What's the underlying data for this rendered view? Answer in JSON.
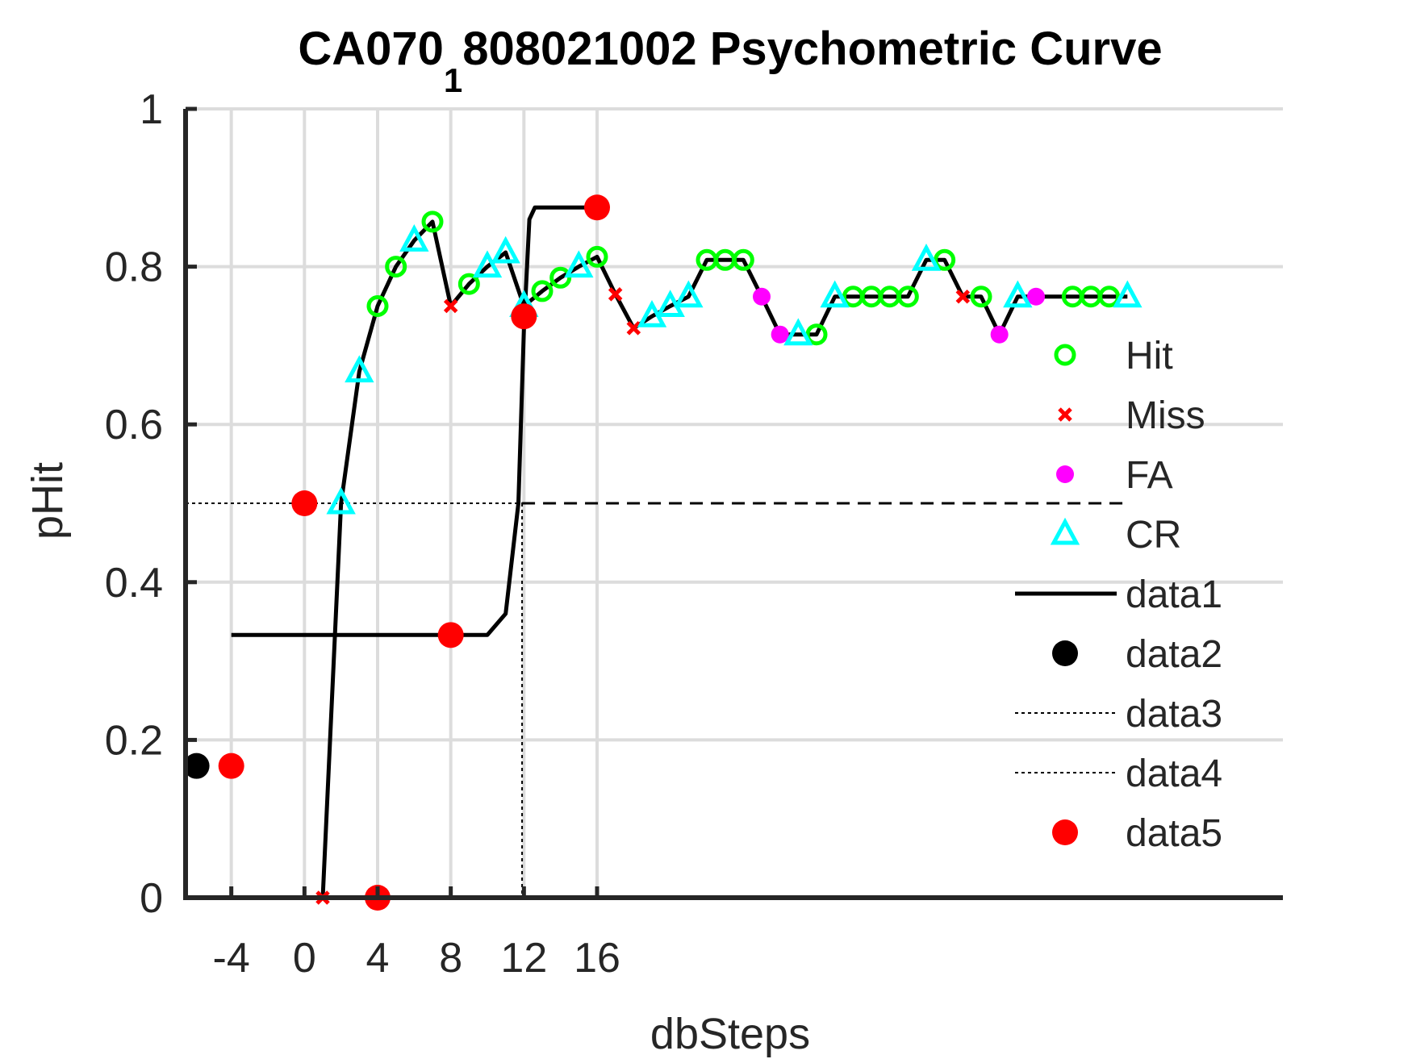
{
  "chart_data": {
    "type": "scatter",
    "title_main": "CA070",
    "title_sub": "1",
    "title_rest": "808021002 Psychometric Curve",
    "xlabel": "dbSteps",
    "ylabel": "pHit",
    "xlim": [
      -6.5,
      53.5
    ],
    "ylim": [
      0,
      1
    ],
    "grid": true,
    "legend_placement": "right",
    "xticks": [
      -4,
      0,
      4,
      8,
      12,
      16
    ],
    "xtick_labels": [
      "-4",
      "0",
      "4",
      "8",
      "12",
      "16"
    ],
    "yticks": [
      0,
      0.2,
      0.4,
      0.6,
      0.8,
      1
    ],
    "ytick_labels": [
      "0",
      "0.2",
      "0.4",
      "0.6",
      "0.8",
      "1"
    ],
    "colors": {
      "hit": "#00ff00",
      "miss": "#ff0000",
      "fa": "#ff00ff",
      "cr": "#00ffff",
      "curve": "#000000",
      "data5": "#ff0000",
      "axis": "#262626",
      "grid": "#dcdcdc"
    },
    "running_line": [
      [
        1,
        0
      ],
      [
        2,
        0.5
      ],
      [
        3,
        0.667
      ],
      [
        4,
        0.75
      ],
      [
        5,
        0.8
      ],
      [
        6,
        0.833
      ],
      [
        7,
        0.857
      ],
      [
        8,
        0.75
      ],
      [
        9,
        0.778
      ],
      [
        10,
        0.8
      ],
      [
        11,
        0.818
      ],
      [
        12,
        0.75
      ],
      [
        13,
        0.769
      ],
      [
        14,
        0.786
      ],
      [
        15,
        0.8
      ],
      [
        16,
        0.8125
      ],
      [
        17,
        0.765
      ],
      [
        18,
        0.722
      ],
      [
        19,
        0.737
      ],
      [
        20,
        0.75
      ],
      [
        21,
        0.762
      ],
      [
        22,
        0.8085
      ],
      [
        23,
        0.8085
      ],
      [
        24,
        0.8085
      ],
      [
        25,
        0.762
      ],
      [
        26,
        0.714
      ],
      [
        27,
        0.714
      ],
      [
        28,
        0.714
      ],
      [
        29,
        0.762
      ],
      [
        30,
        0.762
      ],
      [
        31,
        0.762
      ],
      [
        32,
        0.762
      ],
      [
        33,
        0.762
      ],
      [
        34,
        0.8085
      ],
      [
        35,
        0.8085
      ],
      [
        36,
        0.762
      ],
      [
        37,
        0.762
      ],
      [
        38,
        0.714
      ],
      [
        39,
        0.762
      ],
      [
        40,
        0.762
      ],
      [
        41,
        0.762
      ],
      [
        42,
        0.762
      ],
      [
        43,
        0.762
      ],
      [
        44,
        0.762
      ],
      [
        45,
        0.762
      ]
    ],
    "series": [
      {
        "name": "Hit",
        "marker": "circle-open",
        "points": [
          [
            4,
            0.75
          ],
          [
            5,
            0.8
          ],
          [
            7,
            0.857
          ],
          [
            9,
            0.778
          ],
          [
            13,
            0.769
          ],
          [
            14,
            0.786
          ],
          [
            16,
            0.8125
          ],
          [
            22,
            0.8085
          ],
          [
            23,
            0.8085
          ],
          [
            24,
            0.8085
          ],
          [
            28,
            0.714
          ],
          [
            30,
            0.762
          ],
          [
            31,
            0.762
          ],
          [
            32,
            0.762
          ],
          [
            33,
            0.762
          ],
          [
            35,
            0.8085
          ],
          [
            37,
            0.762
          ],
          [
            42,
            0.762
          ],
          [
            43,
            0.762
          ],
          [
            44,
            0.762
          ]
        ]
      },
      {
        "name": "Miss",
        "marker": "x",
        "points": [
          [
            1,
            0
          ],
          [
            8,
            0.75
          ],
          [
            17,
            0.765
          ],
          [
            18,
            0.722
          ],
          [
            36,
            0.762
          ]
        ]
      },
      {
        "name": "FA",
        "marker": "dot",
        "points": [
          [
            25,
            0.762
          ],
          [
            26,
            0.714
          ],
          [
            38,
            0.714
          ],
          [
            40,
            0.762
          ]
        ]
      },
      {
        "name": "CR",
        "marker": "triangle-open",
        "points": [
          [
            2,
            0.5
          ],
          [
            3,
            0.667
          ],
          [
            6,
            0.833
          ],
          [
            10,
            0.8
          ],
          [
            11,
            0.818
          ],
          [
            12,
            0.75
          ],
          [
            15,
            0.8
          ],
          [
            19,
            0.737
          ],
          [
            20,
            0.75
          ],
          [
            21,
            0.762
          ],
          [
            27,
            0.714
          ],
          [
            29,
            0.762
          ],
          [
            34,
            0.8085
          ],
          [
            39,
            0.762
          ],
          [
            45,
            0.762
          ]
        ]
      },
      {
        "name": "data1",
        "marker": "line",
        "points": [
          [
            -4,
            0.333
          ],
          [
            10,
            0.333
          ],
          [
            11,
            0.36
          ],
          [
            11.7,
            0.5
          ],
          [
            12,
            0.72
          ],
          [
            12.3,
            0.86
          ],
          [
            12.6,
            0.875
          ],
          [
            16,
            0.875
          ]
        ]
      },
      {
        "name": "data2",
        "marker": "filled-circle",
        "points": [
          [
            -5.9,
            0.167
          ]
        ]
      },
      {
        "name": "data3",
        "marker": "dotted-line",
        "points": [
          [
            -6.5,
            0.5
          ],
          [
            11.9,
            0.5
          ]
        ]
      },
      {
        "name": "data4",
        "marker": "dotted-line",
        "points": [
          [
            11.9,
            0.5
          ],
          [
            11.9,
            0
          ]
        ]
      },
      {
        "name": "data5",
        "marker": "filled-circle",
        "points": [
          [
            -4,
            0.167
          ],
          [
            0,
            0.5
          ],
          [
            4,
            0
          ],
          [
            8,
            0.333
          ],
          [
            12,
            0.737
          ],
          [
            16,
            0.875
          ]
        ]
      }
    ],
    "half_line_dashed": [
      [
        11.9,
        0.5
      ],
      [
        45,
        0.5
      ]
    ],
    "legend": [
      {
        "label": "Hit",
        "marker": "circle-open"
      },
      {
        "label": "Miss",
        "marker": "x"
      },
      {
        "label": "FA",
        "marker": "dot"
      },
      {
        "label": "CR",
        "marker": "triangle-open"
      },
      {
        "label": "data1",
        "marker": "line"
      },
      {
        "label": "data2",
        "marker": "filled-circle-black"
      },
      {
        "label": "data3",
        "marker": "dotted-line"
      },
      {
        "label": "data4",
        "marker": "dotted-line"
      },
      {
        "label": "data5",
        "marker": "filled-circle-red"
      }
    ]
  }
}
